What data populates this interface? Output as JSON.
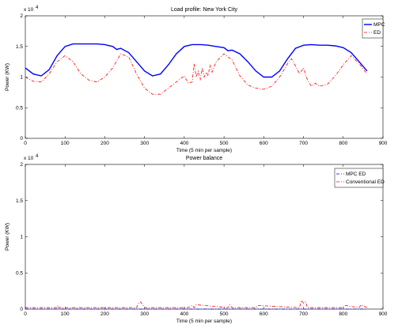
{
  "chart_data": [
    {
      "type": "line",
      "title": "Load profile: New York City",
      "xlabel": "Time (5 min per sample)",
      "ylabel": "Power (KW)",
      "xlim": [
        0,
        900
      ],
      "ylim": [
        0,
        2
      ],
      "y_scale_label": "x 10",
      "y_scale_exp": "4",
      "xticks": [
        "0",
        "100",
        "200",
        "300",
        "400",
        "500",
        "600",
        "700",
        "800",
        "900"
      ],
      "yticks": [
        "0",
        "0.5",
        "1",
        "1.5",
        "2"
      ],
      "legend_position": "top-right",
      "grid": false,
      "series": [
        {
          "name": "MPC",
          "color": "#0000ff",
          "dash": "solid",
          "x": [
            0,
            20,
            40,
            60,
            80,
            100,
            120,
            140,
            160,
            180,
            200,
            220,
            230,
            240,
            260,
            280,
            300,
            320,
            340,
            360,
            380,
            400,
            420,
            440,
            460,
            480,
            500,
            510,
            520,
            540,
            560,
            580,
            600,
            620,
            640,
            660,
            680,
            700,
            720,
            740,
            760,
            780,
            800,
            820,
            840,
            860
          ],
          "values": [
            1.15,
            1.05,
            1.02,
            1.12,
            1.35,
            1.5,
            1.54,
            1.54,
            1.54,
            1.54,
            1.53,
            1.5,
            1.45,
            1.47,
            1.4,
            1.25,
            1.1,
            1.02,
            1.05,
            1.2,
            1.38,
            1.5,
            1.53,
            1.53,
            1.52,
            1.5,
            1.48,
            1.43,
            1.44,
            1.38,
            1.25,
            1.1,
            1.0,
            1.0,
            1.1,
            1.3,
            1.47,
            1.52,
            1.53,
            1.52,
            1.52,
            1.51,
            1.48,
            1.4,
            1.25,
            1.1
          ]
        },
        {
          "name": "ED",
          "color": "#ff0000",
          "dash": "dash-dot",
          "x": [
            0,
            20,
            40,
            60,
            80,
            100,
            120,
            140,
            160,
            180,
            200,
            220,
            240,
            260,
            280,
            300,
            320,
            340,
            360,
            380,
            400,
            410,
            420,
            425,
            430,
            435,
            440,
            445,
            450,
            455,
            460,
            465,
            470,
            480,
            500,
            520,
            540,
            560,
            580,
            600,
            620,
            640,
            660,
            670,
            680,
            690,
            700,
            710,
            720,
            730,
            740,
            760,
            780,
            800,
            820,
            840,
            860
          ],
          "values": [
            1.0,
            0.93,
            0.92,
            1.05,
            1.25,
            1.35,
            1.25,
            1.05,
            0.95,
            0.92,
            1.0,
            1.15,
            1.38,
            1.33,
            1.05,
            0.82,
            0.72,
            0.72,
            0.82,
            0.92,
            1.02,
            0.9,
            0.92,
            1.22,
            1.0,
            1.1,
            0.95,
            1.15,
            1.0,
            1.08,
            1.02,
            1.2,
            1.08,
            1.25,
            1.38,
            1.28,
            1.02,
            0.87,
            0.82,
            0.8,
            0.85,
            1.0,
            1.22,
            1.3,
            1.18,
            1.05,
            1.15,
            0.95,
            0.85,
            0.9,
            0.85,
            0.88,
            1.02,
            1.2,
            1.35,
            1.22,
            1.05
          ]
        }
      ]
    },
    {
      "type": "line",
      "title": "Power balance",
      "xlabel": "Time (5 min per sample)",
      "ylabel": "Power (KW)",
      "xlim": [
        0,
        900
      ],
      "ylim": [
        0,
        2
      ],
      "y_scale_label": "x 10",
      "y_scale_exp": "4",
      "xticks": [
        "0",
        "100",
        "200",
        "300",
        "400",
        "500",
        "600",
        "700",
        "800",
        "900"
      ],
      "yticks": [
        "0",
        "0.5",
        "1",
        "1.5",
        "2"
      ],
      "legend_position": "top-right",
      "grid": false,
      "series": [
        {
          "name": "MPC ED",
          "color": "#0000ff",
          "dash": "dash-dot",
          "x": [
            0,
            100,
            200,
            300,
            400,
            500,
            600,
            700,
            800,
            860
          ],
          "values": [
            0.0,
            0.0,
            0.0,
            0.0,
            0.0,
            0.0,
            0.0,
            0.0,
            0.0,
            0.0
          ]
        },
        {
          "name": "Conventional ED",
          "color": "#ff0000",
          "dash": "dash-dot",
          "x": [
            0,
            80,
            82,
            84,
            200,
            280,
            285,
            290,
            295,
            300,
            410,
            420,
            425,
            430,
            510,
            515,
            520,
            580,
            585,
            690,
            695,
            700,
            705,
            710,
            800,
            805,
            840,
            845,
            860
          ],
          "values": [
            0.02,
            0.02,
            0.05,
            0.02,
            0.02,
            0.02,
            0.08,
            0.1,
            0.06,
            0.02,
            0.02,
            0.05,
            0.02,
            0.06,
            0.02,
            0.06,
            0.02,
            0.02,
            0.05,
            0.02,
            0.12,
            0.08,
            0.1,
            0.02,
            0.02,
            0.05,
            0.02,
            0.06,
            0.02
          ]
        }
      ]
    }
  ]
}
